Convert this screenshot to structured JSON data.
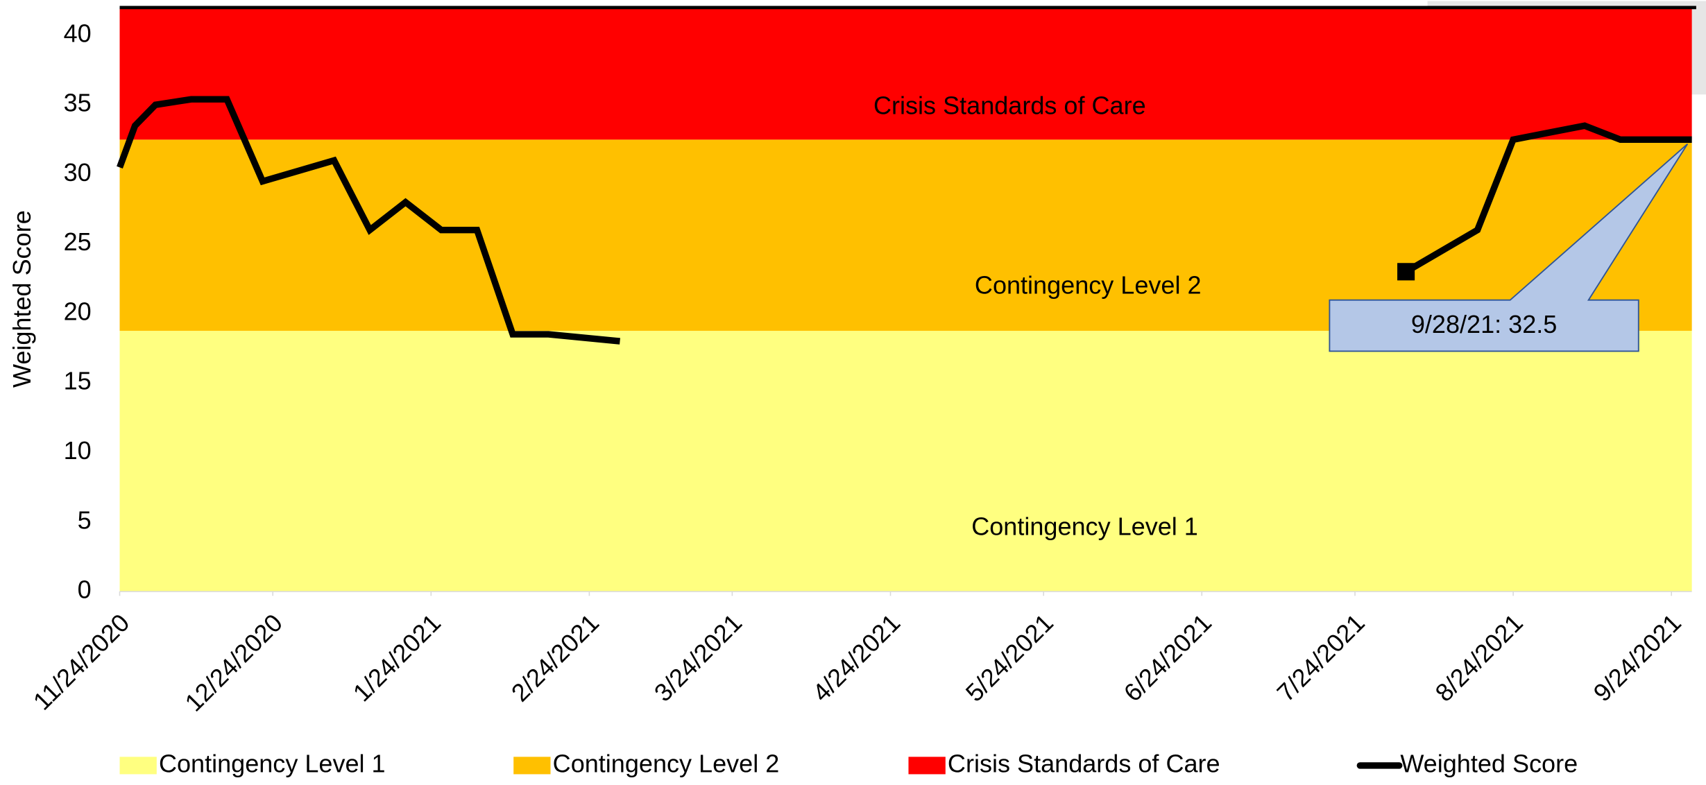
{
  "chart_data": {
    "type": "line",
    "ylabel": "Weighted Score",
    "ylim": [
      0,
      42
    ],
    "yticks": [
      0,
      5,
      10,
      15,
      20,
      25,
      30,
      35,
      40
    ],
    "xlim": [
      "2020-11-24",
      "2021-09-28"
    ],
    "xticks": [
      {
        "value": "2020-11-24",
        "label": "11/24/2020"
      },
      {
        "value": "2020-12-24",
        "label": "12/24/2020"
      },
      {
        "value": "2021-01-24",
        "label": "1/24/2021"
      },
      {
        "value": "2021-02-24",
        "label": "2/24/2021"
      },
      {
        "value": "2021-03-24",
        "label": "3/24/2021"
      },
      {
        "value": "2021-04-24",
        "label": "4/24/2021"
      },
      {
        "value": "2021-05-24",
        "label": "5/24/2021"
      },
      {
        "value": "2021-06-24",
        "label": "6/24/2021"
      },
      {
        "value": "2021-07-24",
        "label": "7/24/2021"
      },
      {
        "value": "2021-08-24",
        "label": "8/24/2021"
      },
      {
        "value": "2021-09-24",
        "label": "9/24/2021"
      }
    ],
    "bands": [
      {
        "name": "Contingency Level 1",
        "color": "#ffff80",
        "value": 18.75
      },
      {
        "name": "Contingency Level 2",
        "color": "#ffc000",
        "value": 13.75
      },
      {
        "name": "Crisis Standards of Care",
        "color": "#ff0000",
        "value": 9.5
      }
    ],
    "x": [
      "2020-11-24",
      "2020-11-27",
      "2020-12-01",
      "2020-12-08",
      "2020-12-15",
      "2020-12-22",
      "2021-01-05",
      "2021-01-12",
      "2021-01-19",
      "2021-01-26",
      "2021-02-02",
      "2021-02-09",
      "2021-02-16",
      "2021-03-02",
      "2021-03-09",
      "2021-08-03",
      "2021-08-17",
      "2021-08-24",
      "2021-08-31",
      "2021-09-07",
      "2021-09-14",
      "2021-09-28"
    ],
    "series": [
      {
        "name": "Weighted Score",
        "color": "#000000",
        "values": [
          30.5,
          33.5,
          35,
          35.4,
          35.4,
          29.5,
          31,
          26,
          28,
          26,
          26,
          18.5,
          18.5,
          18,
          null,
          23,
          26,
          32.5,
          33,
          33.5,
          32.5,
          32.5
        ]
      }
    ],
    "annotation": "9/28/21: 32.5"
  }
}
